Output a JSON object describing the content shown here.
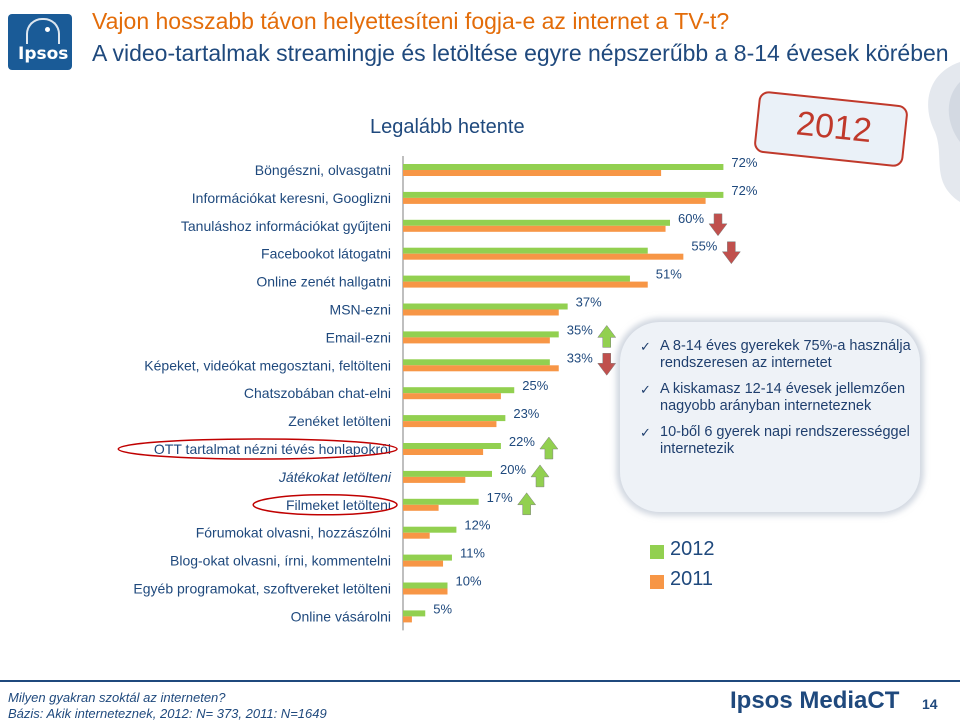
{
  "header": {
    "logo_text": "Ipsos",
    "title_line1": "Vajon hosszabb távon helyettesíteni fogja-e az internet a TV-t?",
    "title_line2": "A video-tartalmak streamingje és letöltése egyre népszerűbb a 8-14 évesek körében"
  },
  "badge": {
    "year": "2012"
  },
  "notes": [
    "A 8-14 éves gyerekek 75%-a használja rendszeresen az internetet",
    "A kiskamasz 12-14 évesek jellemzően nagyobb arányban interneteznek",
    "10-ből 6 gyerek napi rendszerességgel internetezik"
  ],
  "footer": {
    "question": "Milyen gyakran szoktál az interneten?",
    "base": "Bázis: Akik interneteznek, 2012: N= 373, 2011: N=1649",
    "brand": "Ipsos MediaCT",
    "page": "14"
  },
  "colors": {
    "series_2012": "#92d050",
    "series_2011": "#f79646",
    "text_blue": "#1f497d",
    "arrow_down": "#c0504d"
  },
  "chart_data": {
    "type": "bar",
    "orientation": "horizontal",
    "title": "Legalább hetente",
    "categories": [
      "Böngészni, olvasgatni",
      "Információkat keresni, Googlizni",
      "Tanuláshoz információkat gyűjteni",
      "Facebookot látogatni",
      "Online zenét hallgatni",
      "MSN-ezni",
      "Email-ezni",
      "Képeket, videókat megosztani, feltölteni",
      "Chatszobában chat-elni",
      "Zenéket letölteni",
      "OTT tartalmat nézni tévés honlapokról",
      "Játékokat letölteni",
      "Filmeket letölteni",
      "Fórumokat olvasni, hozzászólni",
      "Blog-okat olvasni, írni, kommentelni",
      "Egyéb programokat, szoftvereket letölteni",
      "Online vásárolni"
    ],
    "italic_categories": [
      11
    ],
    "circled_categories": [
      10,
      12
    ],
    "series": [
      {
        "name": "2012",
        "values": [
          72,
          72,
          60,
          55,
          51,
          37,
          35,
          33,
          25,
          23,
          22,
          20,
          17,
          12,
          11,
          10,
          5
        ]
      },
      {
        "name": "2011",
        "values": [
          58,
          68,
          59,
          63,
          55,
          35,
          33,
          35,
          22,
          21,
          18,
          14,
          8,
          6,
          9,
          10,
          2
        ]
      }
    ],
    "value_labels": [
      "72%",
      "72%",
      "60%",
      "55%",
      "51%",
      "37%",
      "35%",
      "33%",
      "25%",
      "23%",
      "22%",
      "20%",
      "17%",
      "12%",
      "11%",
      "10%",
      "5%"
    ],
    "trend_arrows": [
      {
        "category": 2,
        "direction": "down"
      },
      {
        "category": 3,
        "direction": "down"
      },
      {
        "category": 6,
        "direction": "up"
      },
      {
        "category": 7,
        "direction": "down"
      },
      {
        "category": 10,
        "direction": "up"
      },
      {
        "category": 11,
        "direction": "up"
      },
      {
        "category": 12,
        "direction": "up"
      }
    ],
    "xlim": [
      0,
      100
    ],
    "grid": false,
    "legend": "bottom-right"
  }
}
